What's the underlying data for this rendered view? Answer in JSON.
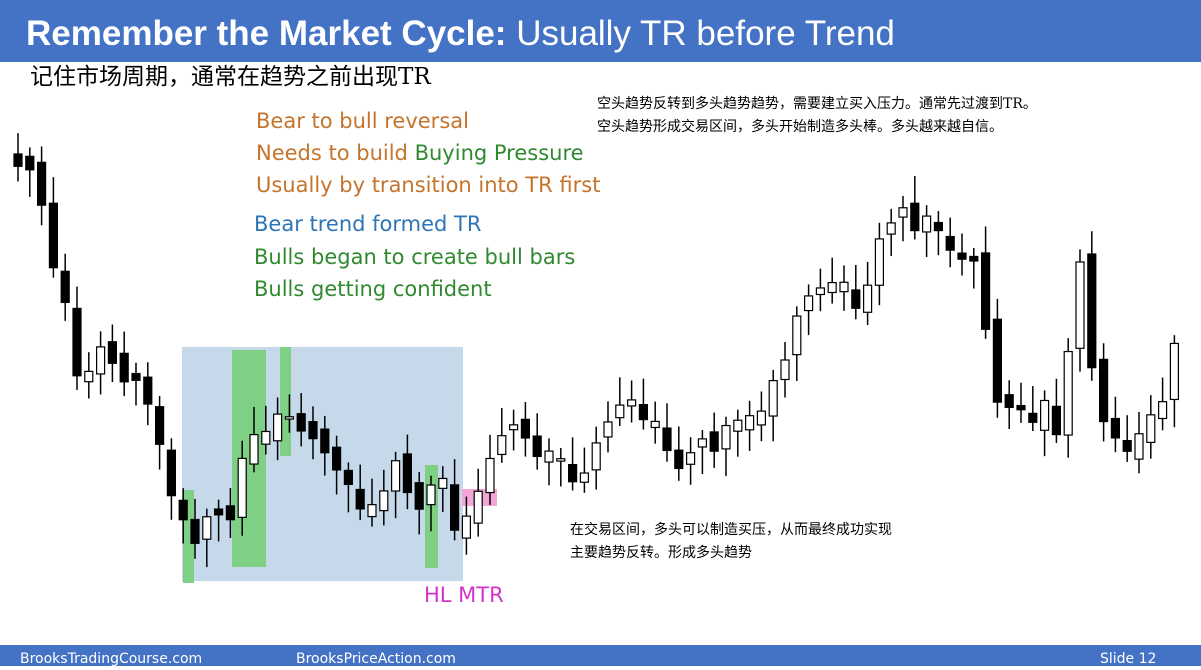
{
  "header": {
    "title_bold": "Remember the Market Cycle:",
    "title_rest": "Usually TR before Trend"
  },
  "subtitle": "记住市场周期，通常在趋势之前出现TR",
  "notes_top": [
    "空头趋势反转到多头趋势趋势，需要建立买入压力。通常先过渡到TR。",
    "空头趋势形成交易区间，多头开始制造多头棒。多头越来越自信。"
  ],
  "annotations": {
    "line1": "Bear to bull reversal",
    "line2_start": "Needs to build",
    "line2_end": "Buying Pressure",
    "line3": "Usually by transition into TR first",
    "line4": "Bear trend formed TR",
    "line5": "Bulls began to create bull bars",
    "line6": "Bulls getting confident"
  },
  "chart_label": "HL MTR",
  "notes_bottom": [
    "在交易区间，多头可以制造买压，从而最终成功实现",
    "主要趋势反转。形成多头趋势"
  ],
  "footer": {
    "left": "BrooksTradingCourse.com",
    "middle": "BrooksPriceAction.com",
    "slide": "Slide  12"
  }
}
